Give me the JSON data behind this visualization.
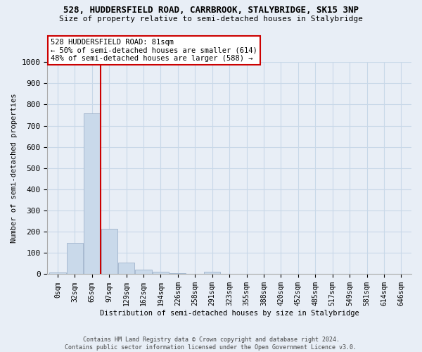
{
  "title_line1": "528, HUDDERSFIELD ROAD, CARRBROOK, STALYBRIDGE, SK15 3NP",
  "title_line2": "Size of property relative to semi-detached houses in Stalybridge",
  "xlabel": "Distribution of semi-detached houses by size in Stalybridge",
  "ylabel": "Number of semi-detached properties",
  "bar_labels": [
    "0sqm",
    "32sqm",
    "65sqm",
    "97sqm",
    "129sqm",
    "162sqm",
    "194sqm",
    "226sqm",
    "258sqm",
    "291sqm",
    "323sqm",
    "355sqm",
    "388sqm",
    "420sqm",
    "452sqm",
    "485sqm",
    "517sqm",
    "549sqm",
    "581sqm",
    "614sqm",
    "646sqm"
  ],
  "bar_values": [
    7,
    148,
    760,
    215,
    55,
    22,
    10,
    6,
    0,
    10,
    0,
    0,
    0,
    0,
    0,
    0,
    0,
    0,
    0,
    0,
    0
  ],
  "bar_color": "#c9d9ea",
  "bar_edgecolor": "#a0b4cc",
  "grid_color": "#c8d8e8",
  "bg_color": "#e8eef6",
  "vline_color": "#cc0000",
  "annotation_text": "528 HUDDERSFIELD ROAD: 81sqm\n← 50% of semi-detached houses are smaller (614)\n48% of semi-detached houses are larger (588) →",
  "annotation_box_color": "#ffffff",
  "annotation_box_edgecolor": "#cc0000",
  "ylim": [
    0,
    1000
  ],
  "yticks": [
    0,
    100,
    200,
    300,
    400,
    500,
    600,
    700,
    800,
    900,
    1000
  ],
  "footnote": "Contains HM Land Registry data © Crown copyright and database right 2024.\nContains public sector information licensed under the Open Government Licence v3.0.",
  "vline_x": 2.5
}
